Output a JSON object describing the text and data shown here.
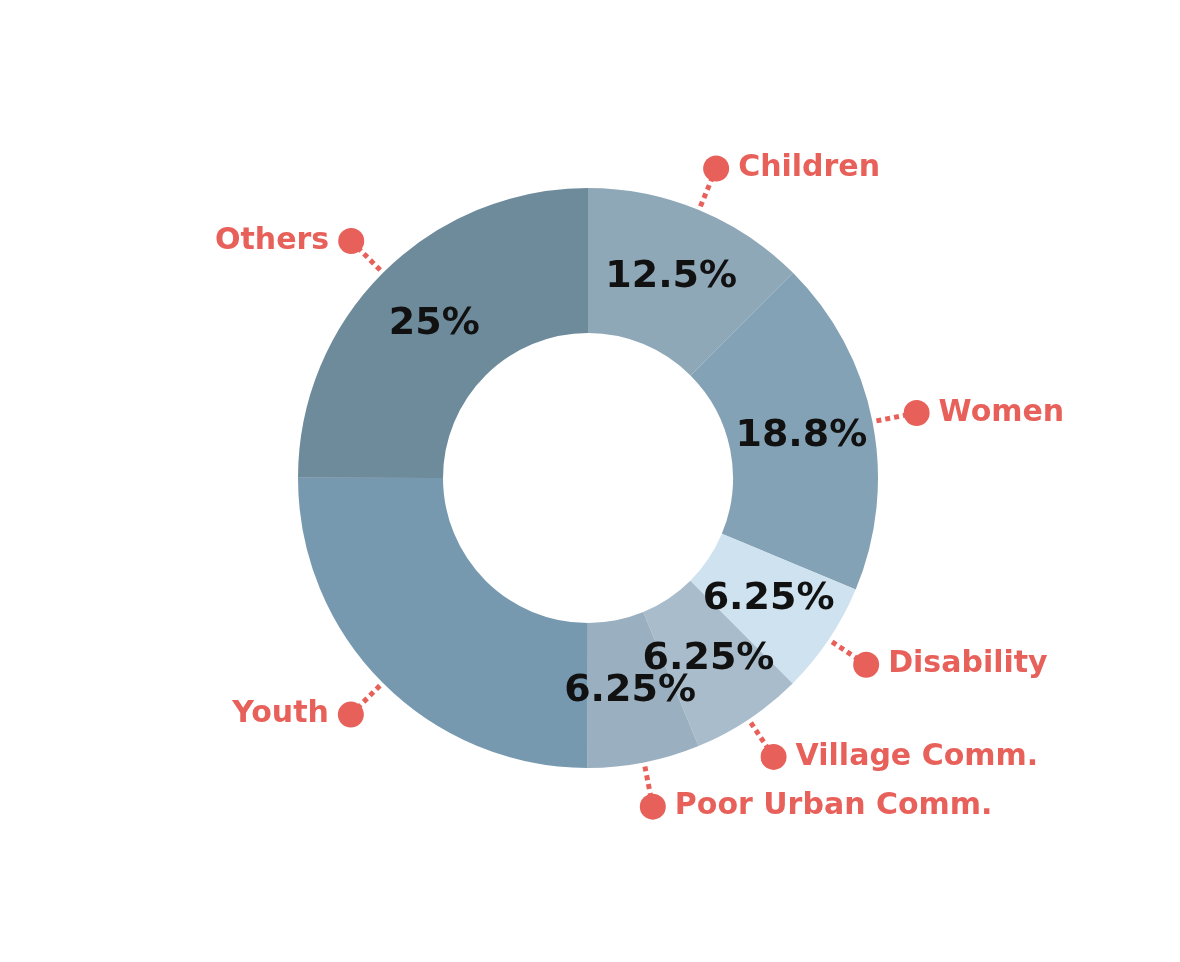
{
  "chart_data": {
    "type": "donut",
    "categories": [
      "Children",
      "Women",
      "Disability",
      "Village Comm.",
      "Poor Urban Comm.",
      "Youth",
      "Others"
    ],
    "values": [
      12.5,
      18.8,
      6.25,
      6.25,
      6.25,
      25,
      25
    ],
    "colors": [
      "#8fa8b8",
      "#84a2b5",
      "#cfe2ef",
      "#a9bccb",
      "#9ab0c0",
      "#7699b0",
      "#6e8b9c"
    ],
    "value_labels": [
      "12.5%",
      "18.8%",
      "6.25%",
      "6.25%",
      "6.25%",
      null,
      "25%"
    ],
    "legend": false
  }
}
